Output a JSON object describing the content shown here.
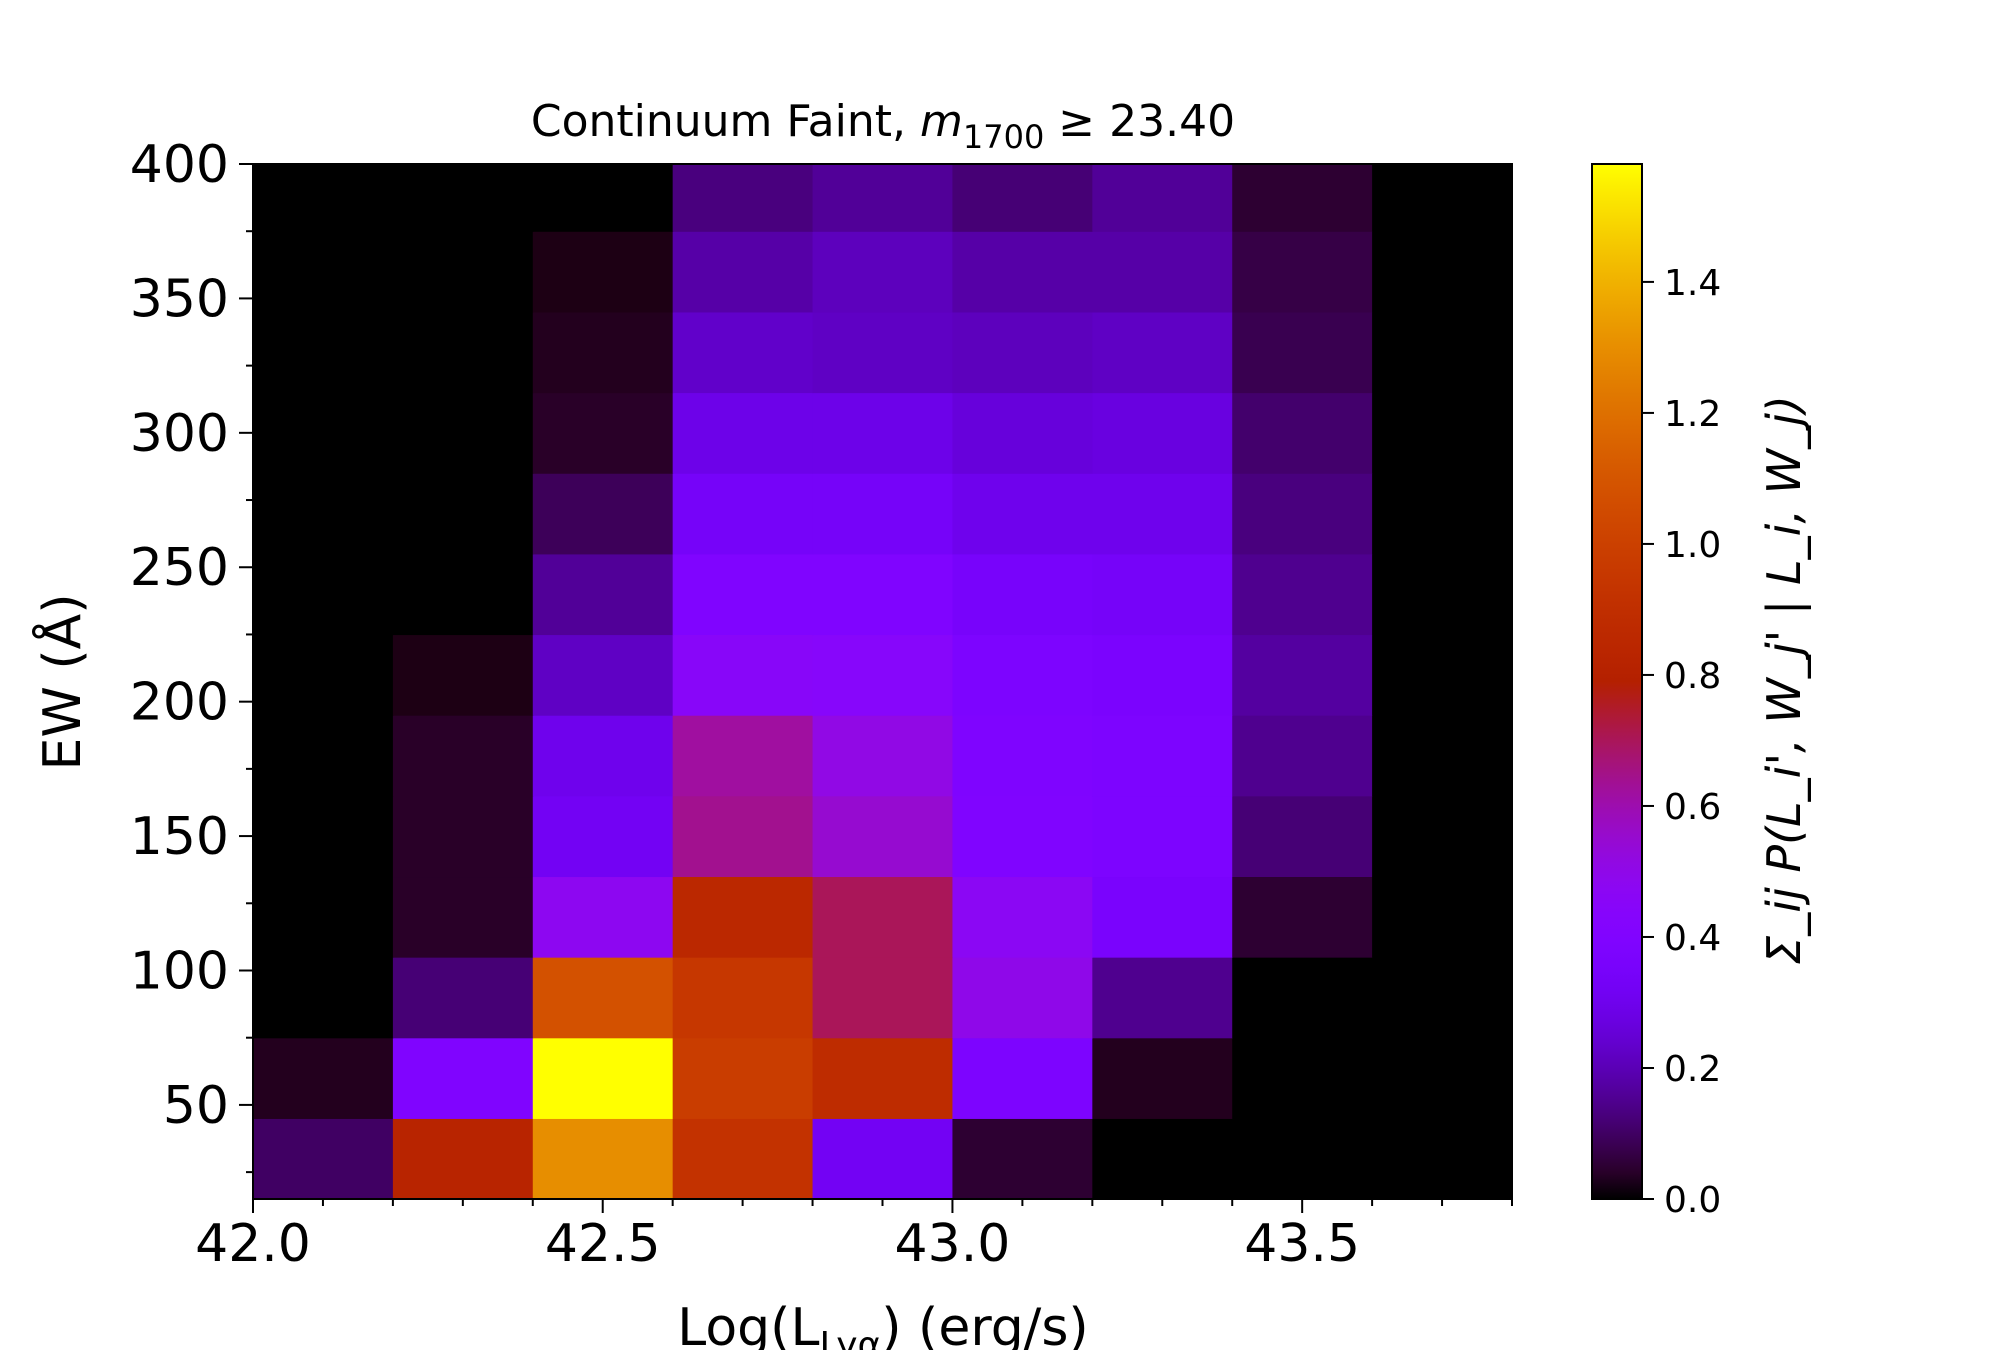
{
  "chart_data": {
    "type": "heatmap",
    "title_main": "Continuum Faint, ",
    "title_math": "m",
    "title_sub": "1700",
    "title_tail": " ≥ 23.40",
    "xlabel_main": "Log(L",
    "xlabel_sub": "Lyα",
    "xlabel_tail": ") (erg/s)",
    "ylabel": "EW (Å)",
    "colorbar_label": "Σ_ij P(L_i', W_j' | L_i, W_j)",
    "x_bin_edges": [
      42.0,
      42.2,
      42.4,
      42.6,
      42.8,
      43.0,
      43.2,
      43.4,
      43.6,
      43.8
    ],
    "y_bin_edges": [
      15,
      45,
      75,
      105,
      135,
      165,
      195,
      225,
      255,
      285,
      315,
      345,
      375,
      400
    ],
    "xlim": [
      42.0,
      43.8
    ],
    "ylim": [
      15,
      400
    ],
    "xticks": [
      42.0,
      42.5,
      43.0,
      43.5
    ],
    "xtick_labels": [
      "42.0",
      "42.5",
      "43.0",
      "43.5"
    ],
    "yticks": [
      50,
      100,
      150,
      200,
      250,
      300,
      350,
      400
    ],
    "ytick_labels": [
      "50",
      "100",
      "150",
      "200",
      "250",
      "300",
      "350",
      "400"
    ],
    "colorbar_range": [
      0.0,
      1.58
    ],
    "colorbar_ticks": [
      0.0,
      0.2,
      0.4,
      0.6,
      0.8,
      1.0,
      1.2,
      1.4
    ],
    "colorbar_tick_labels": [
      "0.0",
      "0.2",
      "0.4",
      "0.6",
      "0.8",
      "1.0",
      "1.2",
      "1.4"
    ],
    "colormap": "gnuplot",
    "values": [
      [
        0.1,
        0.82,
        1.3,
        0.92,
        0.32,
        0.05,
        0.0,
        0.0,
        0.0
      ],
      [
        0.03,
        0.4,
        1.58,
        0.98,
        0.88,
        0.38,
        0.03,
        0.0,
        0.0
      ],
      [
        0.0,
        0.12,
        1.08,
        0.95,
        0.7,
        0.5,
        0.15,
        0.0,
        0.0
      ],
      [
        0.0,
        0.04,
        0.48,
        0.85,
        0.7,
        0.47,
        0.36,
        0.05,
        0.0
      ],
      [
        0.0,
        0.04,
        0.32,
        0.64,
        0.55,
        0.4,
        0.38,
        0.12,
        0.0
      ],
      [
        0.0,
        0.04,
        0.3,
        0.62,
        0.51,
        0.39,
        0.38,
        0.15,
        0.0
      ],
      [
        0.0,
        0.02,
        0.22,
        0.45,
        0.44,
        0.38,
        0.37,
        0.17,
        0.0
      ],
      [
        0.0,
        0.0,
        0.16,
        0.4,
        0.4,
        0.35,
        0.34,
        0.15,
        0.0
      ],
      [
        0.0,
        0.0,
        0.09,
        0.34,
        0.34,
        0.3,
        0.3,
        0.13,
        0.0
      ],
      [
        0.0,
        0.0,
        0.04,
        0.29,
        0.29,
        0.26,
        0.27,
        0.11,
        0.0
      ],
      [
        0.0,
        0.0,
        0.03,
        0.23,
        0.22,
        0.21,
        0.22,
        0.08,
        0.0
      ],
      [
        0.0,
        0.0,
        0.02,
        0.18,
        0.21,
        0.18,
        0.18,
        0.07,
        0.0
      ],
      [
        0.0,
        0.0,
        0.0,
        0.13,
        0.16,
        0.12,
        0.16,
        0.05,
        0.0
      ]
    ]
  }
}
